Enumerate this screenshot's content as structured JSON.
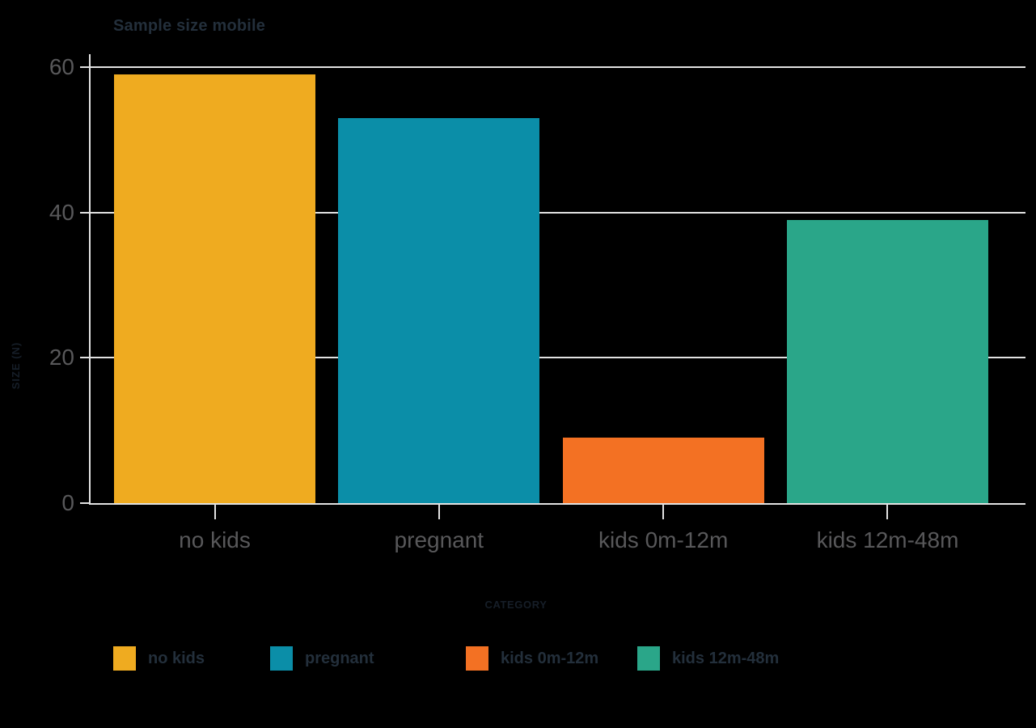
{
  "chart_data": {
    "type": "bar",
    "title": "Sample size mobile",
    "categories": [
      "no kids",
      "pregnant",
      "kids 0m-12m",
      "kids 12m-48m"
    ],
    "values": [
      59,
      53,
      9,
      39
    ],
    "colors": [
      "#efab20",
      "#0b8ea8",
      "#f37123",
      "#2aa689"
    ],
    "xlabel": "CATEGORY",
    "ylabel": "SIZE (N)",
    "ylim": [
      0,
      60
    ],
    "yticks": [
      0,
      20,
      40,
      60
    ],
    "grid": "horizontal",
    "legend": {
      "position": "bottom",
      "entries": [
        {
          "label": "no kids",
          "color": "#efab20"
        },
        {
          "label": "pregnant",
          "color": "#0b8ea8"
        },
        {
          "label": "kids 0m-12m",
          "color": "#f37123"
        },
        {
          "label": "kids 12m-48m",
          "color": "#2aa689"
        }
      ]
    }
  },
  "colors": {
    "background": "#000000",
    "axis": "#e2e2e2",
    "tick_label": "#58585a",
    "title_text": "#232f3b",
    "axis_title_text": "#161e28"
  }
}
